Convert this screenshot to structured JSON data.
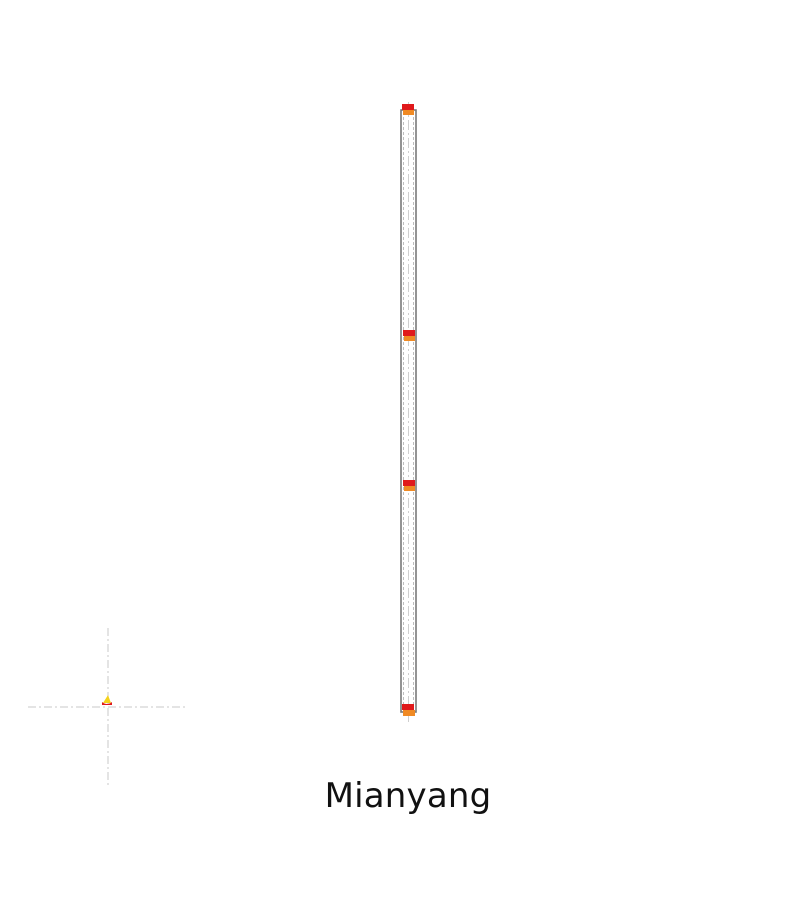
{
  "diagram": {
    "caption": "Mianyang",
    "colors": {
      "track_outline": "#7a7a7a",
      "track_inner": "#bdbdbd",
      "marker_red": "#e0191b",
      "marker_orange": "#f08a24",
      "marker_yellow": "#f4d21b",
      "crosshair": "#c8c8c8",
      "centerline": "#cfcfcf"
    },
    "station_markers": [
      {
        "id": "station-top"
      },
      {
        "id": "station-upper-middle"
      },
      {
        "id": "station-lower-middle"
      },
      {
        "id": "station-bottom"
      }
    ],
    "origin_icon": "origin-crosshair-icon"
  }
}
